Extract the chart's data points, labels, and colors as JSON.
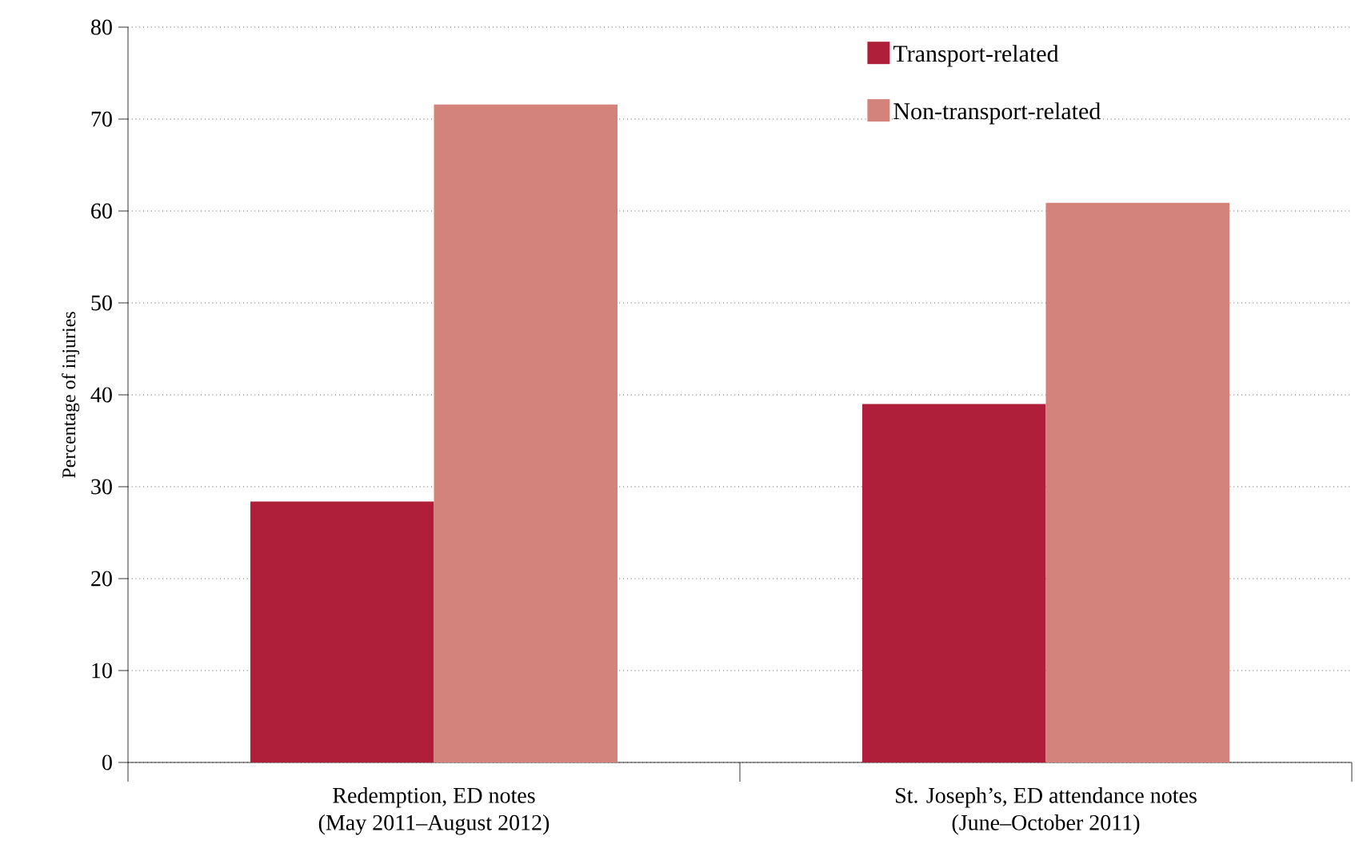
{
  "chart_data": {
    "type": "bar",
    "ylabel": "Percentage of injuries",
    "categories": [
      "Redemption, ED notes\n(May 2011–August 2012)",
      "St. Joseph’s, ED attendance notes\n(June–October 2011)"
    ],
    "series": [
      {
        "name": "Transport-related",
        "color": "#b01f3a",
        "values": [
          28.4,
          39.0
        ]
      },
      {
        "name": "Non-transport-related",
        "color": "#d4827c",
        "values": [
          71.6,
          60.9
        ]
      }
    ],
    "ylim": [
      0,
      80
    ],
    "yticks": [
      0,
      10,
      20,
      30,
      40,
      50,
      60,
      70,
      80
    ],
    "grid": "y",
    "legend": "top right"
  }
}
